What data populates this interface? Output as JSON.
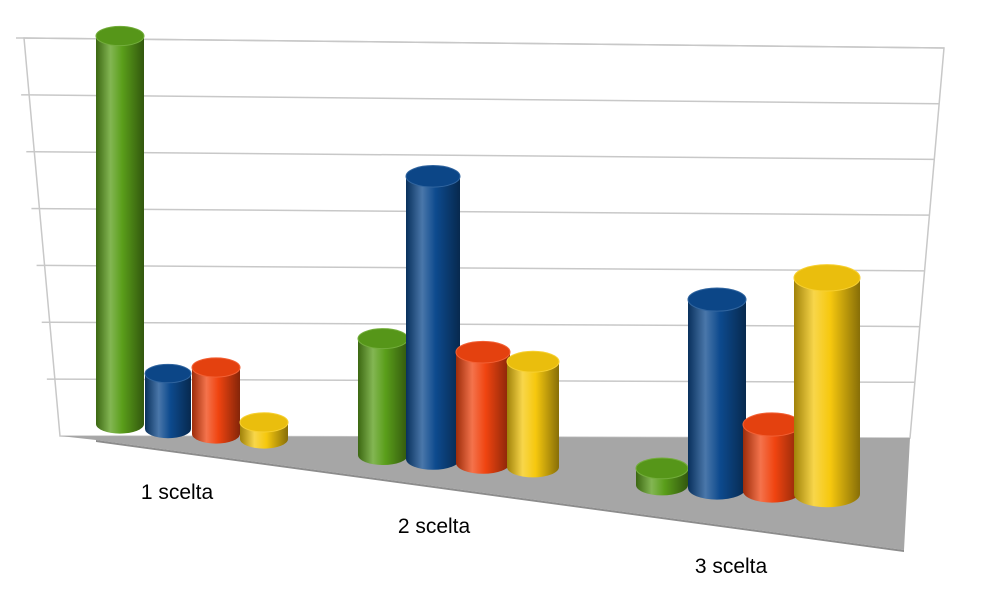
{
  "chart_data": {
    "type": "bar",
    "style": "3d-cylinder",
    "title": "",
    "xlabel": "",
    "ylabel": "",
    "ylim": [
      0,
      7
    ],
    "grid": true,
    "legend": "none",
    "categories": [
      "1 scelta",
      "2 scelta",
      "3 scelta"
    ],
    "series": [
      {
        "color": "#5a9e1a",
        "values": [
          7.0,
          2.1,
          0.3
        ]
      },
      {
        "color": "#0d4a8e",
        "values": [
          1.0,
          5.1,
          3.4
        ]
      },
      {
        "color": "#f04410",
        "values": [
          1.2,
          2.0,
          1.2
        ]
      },
      {
        "color": "#f6c80e",
        "values": [
          0.3,
          1.9,
          3.9
        ]
      }
    ]
  }
}
